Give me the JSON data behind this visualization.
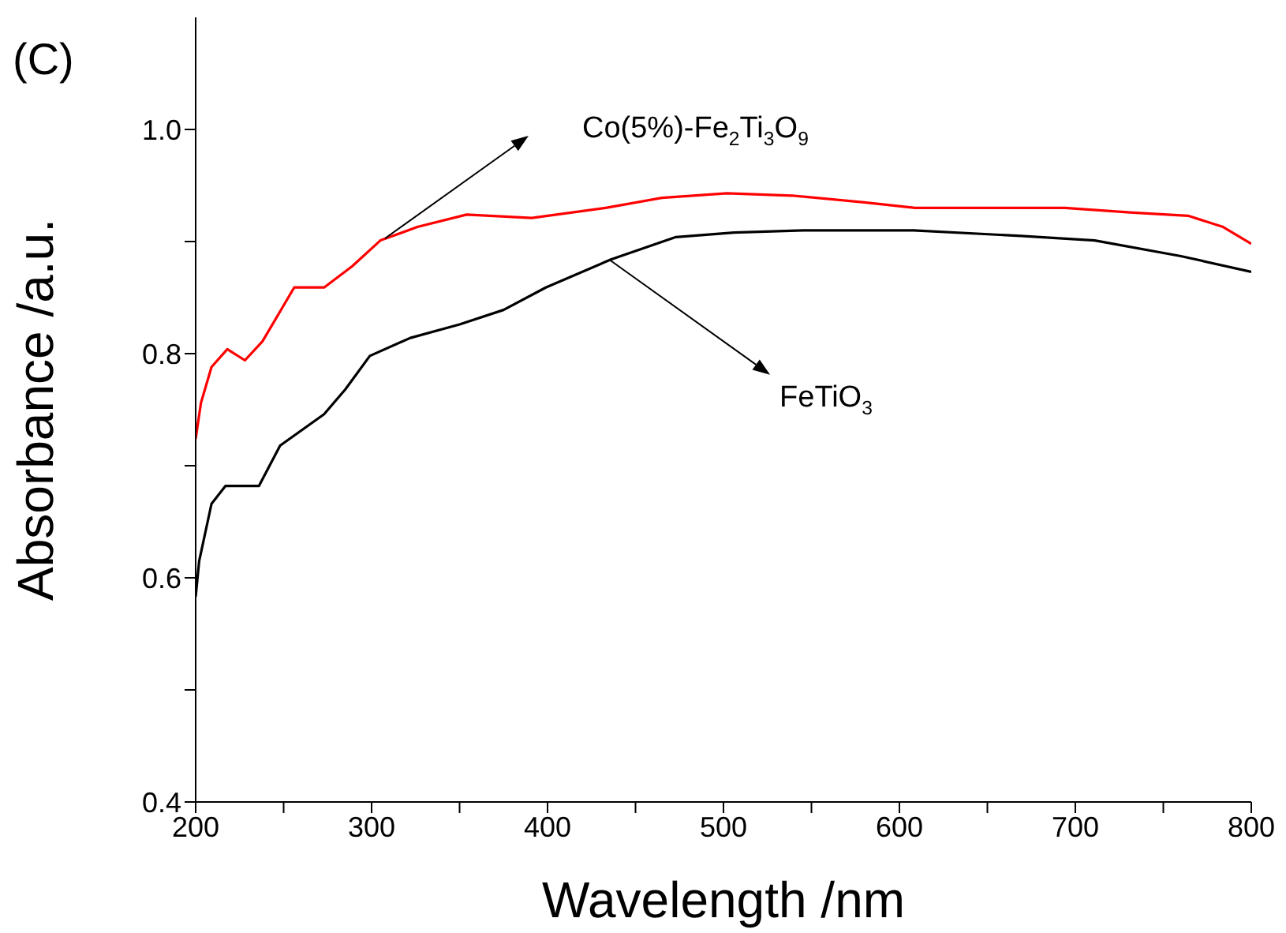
{
  "chart_data": {
    "type": "line",
    "xlabel": "Wavelength /nm",
    "ylabel": "Absorbance /a.u.",
    "xlim": [
      200,
      800
    ],
    "ylim": [
      0.4,
      1.1
    ],
    "xticks": [
      200,
      {
        "value": 250,
        "label": null
      },
      300,
      {
        "value": 350,
        "label": null
      },
      400,
      {
        "value": 450,
        "label": null
      },
      500,
      {
        "value": 550,
        "label": null
      },
      600,
      {
        "value": 650,
        "label": null
      },
      700,
      {
        "value": 750,
        "label": null
      },
      800
    ],
    "yticks": [
      0.4,
      {
        "value": 0.5,
        "label": null
      },
      0.6,
      {
        "value": 0.7,
        "label": null
      },
      0.8,
      {
        "value": 0.9,
        "label": null
      },
      {
        "value": 1,
        "label": "1.0"
      }
    ],
    "marker": "none",
    "line_style": "solid",
    "series": [
      {
        "color": "#ff0000",
        "x": [
          200,
          203,
          209,
          218,
          228,
          238,
          256,
          273,
          289,
          305,
          326,
          354,
          391,
          433,
          465,
          502,
          539,
          580,
          609,
          650,
          694,
          731,
          764,
          784,
          800
        ],
        "values": [
          0.724,
          0.756,
          0.788,
          0.804,
          0.794,
          0.811,
          0.859,
          0.859,
          0.878,
          0.901,
          0.913,
          0.924,
          0.921,
          0.93,
          0.939,
          0.943,
          0.941,
          0.935,
          0.93,
          0.93,
          0.93,
          0.926,
          0.923,
          0.913,
          0.898
        ]
      },
      {
        "color": "#000000",
        "x": [
          200,
          202,
          209,
          217,
          236,
          248,
          273,
          285,
          299,
          322,
          350,
          375,
          399,
          436,
          473,
          506,
          546,
          608,
          669,
          711,
          760,
          800
        ],
        "values": [
          0.583,
          0.615,
          0.666,
          0.682,
          0.682,
          0.718,
          0.746,
          0.768,
          0.798,
          0.814,
          0.826,
          0.839,
          0.859,
          0.884,
          0.904,
          0.908,
          0.91,
          0.91,
          0.905,
          0.901,
          0.887,
          0.873
        ]
      }
    ],
    "annotations": [
      "(C)",
      "Co(5%)-Fe$_{2}$Ti$_{3}$O$_{9}$",
      {
        "text": "FeTiO$_{3}$",
        "x": 435,
        "y": 0.884
      }
    ]
  }
}
